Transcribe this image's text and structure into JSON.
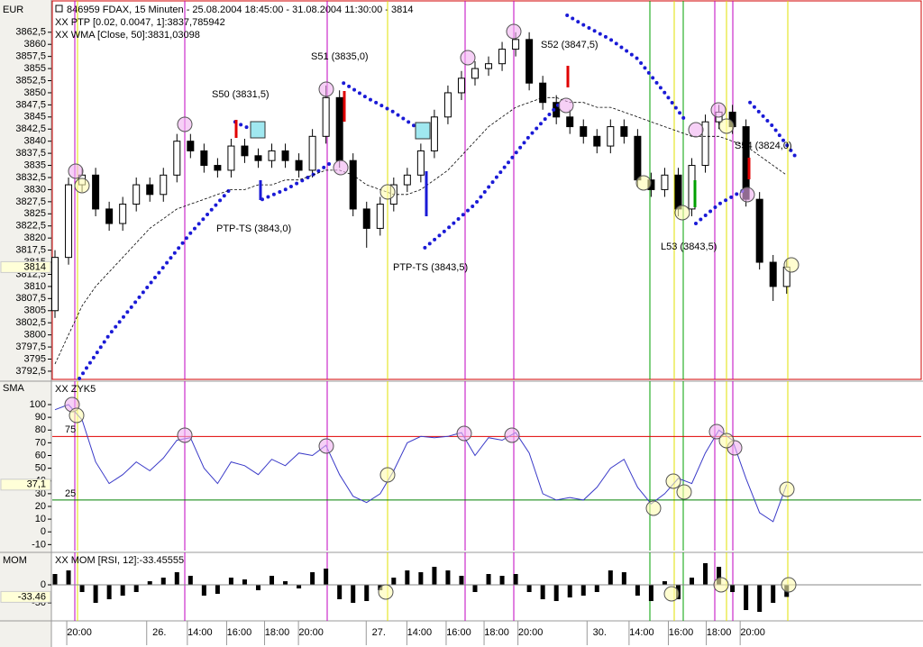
{
  "chart_data": [
    {
      "type": "candlestick",
      "title": "846959  FDAX, 15 Minuten - 25.08.2004 18:45:00 - 31.08.2004 11:30:00 - 3814",
      "axis_label": "EUR",
      "color": "#000000",
      "x": [
        0,
        1,
        2,
        3,
        4,
        5,
        6,
        7,
        8,
        9,
        10,
        11,
        12,
        13,
        14,
        15,
        16,
        17,
        18,
        19,
        20,
        21,
        22,
        23,
        24,
        25,
        26,
        27,
        28,
        29,
        30,
        31,
        32,
        33,
        34,
        35,
        36,
        37,
        38,
        39,
        40,
        41,
        42,
        43,
        44,
        45,
        46,
        47,
        48,
        49,
        50,
        51,
        52,
        53,
        54
      ],
      "open": [
        3805,
        3816,
        3831,
        3833,
        3826,
        3823,
        3827,
        3831,
        3829,
        3833,
        3840,
        3838,
        3835,
        3834,
        3839,
        3837,
        3836,
        3838,
        3836,
        3834,
        3841,
        3849,
        3836,
        3826,
        3822,
        3827,
        3831,
        3833,
        3838,
        3845,
        3850,
        3853,
        3855,
        3856,
        3859,
        3861,
        3852,
        3848,
        3845,
        3843,
        3841,
        3839,
        3843,
        3841,
        3832,
        3830,
        3833,
        3826,
        3835,
        3844,
        3846,
        3843,
        3828,
        3815,
        3810
      ],
      "high": [
        3817.5,
        3832.5,
        3834.5,
        3834.5,
        3827.5,
        3828.5,
        3832.5,
        3832.5,
        3834.5,
        3841.5,
        3841.5,
        3839.5,
        3836.5,
        3840.5,
        3840.5,
        3838.5,
        3839.5,
        3839.5,
        3837.5,
        3842.5,
        3851.5,
        3850.5,
        3837.5,
        3827.5,
        3828.5,
        3832.5,
        3834.5,
        3839.5,
        3846.5,
        3851.5,
        3854.5,
        3856.5,
        3857.5,
        3860.5,
        3862.5,
        3862.5,
        3853.5,
        3849.5,
        3846.5,
        3844.5,
        3842.5,
        3844.5,
        3844.5,
        3842.5,
        3833.5,
        3834.5,
        3834.5,
        3836.5,
        3845.5,
        3847.5,
        3847.5,
        3844.5,
        3829.5,
        3816.5,
        3815.5
      ],
      "low": [
        3803.5,
        3814.5,
        3829.5,
        3824.5,
        3821.5,
        3821.5,
        3825.5,
        3827.5,
        3827.5,
        3831.5,
        3836.5,
        3833.5,
        3832.5,
        3832.5,
        3835.5,
        3834.5,
        3834.5,
        3834.5,
        3832.5,
        3832.5,
        3839.5,
        3834.5,
        3824.5,
        3818,
        3820.5,
        3825.5,
        3829.5,
        3831.5,
        3836.5,
        3843.5,
        3848.5,
        3851.5,
        3853.5,
        3854.5,
        3857.5,
        3850.5,
        3846.5,
        3843.5,
        3841.5,
        3839.5,
        3837.5,
        3837.5,
        3839.5,
        3830.5,
        3828.5,
        3828.5,
        3824.5,
        3824.5,
        3833.5,
        3842.5,
        3841.5,
        3826.5,
        3813.5,
        3807,
        3808.5
      ],
      "close": [
        3816,
        3831,
        3833,
        3826,
        3823,
        3827,
        3831,
        3829,
        3833,
        3840,
        3838,
        3835,
        3834,
        3839,
        3837,
        3836,
        3838,
        3836,
        3834,
        3841,
        3849,
        3836,
        3826,
        3822,
        3827,
        3831,
        3833,
        3838,
        3845,
        3850,
        3853,
        3855,
        3856,
        3859,
        3861,
        3852,
        3848,
        3845,
        3843,
        3841,
        3839,
        3843,
        3841,
        3832,
        3830,
        3833,
        3826,
        3835,
        3844,
        3846,
        3843,
        3828,
        3815,
        3810,
        3814
      ],
      "series": [
        {
          "name": "XX PTP [0.02, 0.0047, 1]:3837,785942",
          "color": "#1a1ad6",
          "style": "dotted",
          "x": [
            1.8,
            4,
            6,
            8,
            10,
            12.9,
            null,
            13.3,
            14,
            15.3,
            null,
            15.3,
            17,
            19,
            20.6,
            null,
            21.3,
            23,
            25,
            26.6,
            null,
            27.3,
            29,
            31,
            33,
            35,
            37.3,
            null,
            37.8,
            39,
            41,
            43,
            45,
            46.6,
            null,
            47.3,
            49,
            50.9,
            null,
            51.3,
            53,
            54.6
          ],
          "values": [
            3791,
            3800,
            3807,
            3814,
            3821,
            3830,
            null,
            3844,
            3843,
            3842,
            null,
            3828,
            3830,
            3833,
            3836,
            null,
            3852,
            3849,
            3846,
            3843,
            null,
            3818,
            3822,
            3827,
            3834,
            3841,
            3848,
            null,
            3866,
            3864,
            3861,
            3857,
            3850,
            3844,
            null,
            3823,
            3827,
            3830,
            null,
            3848,
            3843,
            3837
          ]
        },
        {
          "name": "XX WMA [Close, 50]:3831,03098",
          "color": "#000000",
          "style": "dashed",
          "values": [
            3794,
            3800,
            3806,
            3810,
            3813,
            3816,
            3819,
            3822,
            3824,
            3826,
            3827,
            3828,
            3829,
            3830,
            3830,
            3831,
            3831,
            3832,
            3832,
            3833,
            3834,
            3834,
            3833,
            3831,
            3830,
            3829,
            3829,
            3830,
            3832,
            3834,
            3837,
            3840,
            3843,
            3845,
            3847,
            3848,
            3849,
            3849,
            3848,
            3848,
            3847,
            3847,
            3846,
            3845,
            3844,
            3843,
            3842,
            3841,
            3841,
            3841,
            3840,
            3839,
            3837,
            3835,
            3833
          ]
        }
      ],
      "current_value": 3814,
      "annotations": [
        {
          "text": "S50 (3831,5)",
          "color": "#e00000"
        },
        {
          "text": "S51 (3835,0)",
          "color": "#e00000"
        },
        {
          "text": "S52 (3847,5)",
          "color": "#e00000"
        },
        {
          "text": "S54 (3824,0)",
          "color": "#e00000"
        },
        {
          "text": "PTP-TS (3843,0)",
          "color": "#1a1ad6"
        },
        {
          "text": "PTP-TS (3843,5)",
          "color": "#1a1ad6"
        },
        {
          "text": "L53 (3843,5)",
          "color": "#008000"
        }
      ],
      "xlim": [
        -0.2,
        63.93
      ],
      "ylim": [
        3791,
        3868.6
      ],
      "yticks": [
        {
          "value": 3792.5,
          "label": "3792,5"
        },
        3795,
        {
          "value": 3797.5,
          "label": "3797,5"
        },
        3800,
        {
          "value": 3802.5,
          "label": "3802,5"
        },
        3805,
        {
          "value": 3807.5,
          "label": "3807,5"
        },
        3810,
        {
          "value": 3812.5,
          "label": "3812,5"
        },
        3815,
        {
          "value": 3817.5,
          "label": "3817,5"
        },
        3820,
        {
          "value": 3822.5,
          "label": "3822,5"
        },
        3825,
        {
          "value": 3827.5,
          "label": "3827,5"
        },
        3830,
        {
          "value": 3832.5,
          "label": "3832,5"
        },
        3835,
        {
          "value": 3837.5,
          "label": "3837,5"
        },
        3840,
        {
          "value": 3842.5,
          "label": "3842,5"
        },
        3845,
        {
          "value": 3847.5,
          "label": "3847,5"
        },
        3850,
        {
          "value": 3852.5,
          "label": "3852,5"
        },
        3855,
        {
          "value": 3857.5,
          "label": "3857,5"
        },
        3860,
        {
          "value": 3862.5,
          "label": "3862,5"
        }
      ]
    },
    {
      "type": "line",
      "axis_label": "SMA",
      "x": [
        0,
        1,
        2,
        3,
        4,
        5,
        6,
        7,
        8,
        9,
        10,
        11,
        12,
        13,
        14,
        15,
        16,
        17,
        18,
        19,
        20,
        21,
        22,
        23,
        24,
        25,
        26,
        27,
        28,
        29,
        30,
        31,
        32,
        33,
        34,
        35,
        36,
        37,
        38,
        39,
        40,
        41,
        42,
        43,
        44,
        45,
        46,
        47,
        48,
        49,
        50,
        51,
        52,
        53,
        54
      ],
      "series": [
        {
          "name": "XX  ZYK5",
          "color": "#3a3ac8",
          "values": [
            96,
            100,
            88,
            55,
            38,
            45,
            55,
            48,
            58,
            72,
            74,
            50,
            38,
            55,
            52,
            45,
            57,
            52,
            62,
            60,
            68,
            45,
            28,
            23,
            30,
            48,
            70,
            75,
            74,
            75,
            78,
            60,
            74,
            72,
            78,
            62,
            30,
            25,
            27,
            25,
            35,
            50,
            57,
            35,
            22,
            30,
            42,
            38,
            62,
            80,
            72,
            42,
            15,
            8,
            37.1
          ]
        }
      ],
      "reference_lines": [
        {
          "value": 75,
          "color": "#e00000"
        },
        {
          "value": 25,
          "color": "#008000"
        }
      ],
      "current_value": {
        "value": 37.1,
        "label": "37,1"
      },
      "xlim": [
        -0.2,
        63.93
      ],
      "ylim": [
        -14,
        117
      ],
      "yticks": [
        100,
        90,
        80,
        70,
        60,
        50,
        40,
        30,
        20,
        10,
        0,
        -10
      ]
    },
    {
      "type": "bar",
      "axis_label": "MOM",
      "x": [
        0,
        1,
        2,
        3,
        4,
        5,
        6,
        7,
        8,
        9,
        10,
        11,
        12,
        13,
        14,
        15,
        16,
        17,
        18,
        19,
        20,
        21,
        22,
        23,
        24,
        25,
        26,
        27,
        28,
        29,
        30,
        31,
        32,
        33,
        34,
        35,
        36,
        37,
        38,
        39,
        40,
        41,
        42,
        43,
        44,
        45,
        46,
        47,
        48,
        49,
        50,
        51,
        52,
        53,
        54
      ],
      "series": [
        {
          "name": "XX MOM [RSI, 12]:-33.45555",
          "color": "#000000",
          "values": [
            30,
            40,
            -20,
            -50,
            -40,
            -30,
            -20,
            10,
            20,
            35,
            25,
            -30,
            -25,
            20,
            15,
            -15,
            25,
            10,
            -10,
            35,
            45,
            -40,
            -50,
            -45,
            -15,
            20,
            40,
            35,
            50,
            40,
            25,
            -20,
            30,
            25,
            30,
            -20,
            -40,
            -45,
            -35,
            -30,
            -20,
            40,
            35,
            -30,
            -45,
            10,
            -40,
            20,
            60,
            50,
            -20,
            -70,
            -75,
            -50,
            -33.46
          ]
        }
      ],
      "current_value": -33.46,
      "xlim": [
        -0.2,
        63.93
      ],
      "ylim": [
        -97.5,
        85
      ],
      "yticks": [
        0,
        -50
      ],
      "xticks": [
        {
          "value": 1.8,
          "label": "20:00"
        },
        {
          "value": 7.7,
          "label": "26."
        },
        {
          "value": 10.7,
          "label": "14:00"
        },
        {
          "value": 13.6,
          "label": "16:00"
        },
        {
          "value": 16.4,
          "label": "18:00"
        },
        {
          "value": 18.9,
          "label": "20:00"
        },
        {
          "value": 23.9,
          "label": "27."
        },
        {
          "value": 26.9,
          "label": "14:00"
        },
        {
          "value": 29.8,
          "label": "16:00"
        },
        {
          "value": 32.6,
          "label": "18:00"
        },
        {
          "value": 35.1,
          "label": "20:00"
        },
        {
          "value": 40.2,
          "label": "30."
        },
        {
          "value": 43.3,
          "label": "14:00"
        },
        {
          "value": 46.2,
          "label": "16:00"
        },
        {
          "value": 49,
          "label": "18:00"
        },
        {
          "value": 51.5,
          "label": "20:00"
        }
      ]
    }
  ]
}
